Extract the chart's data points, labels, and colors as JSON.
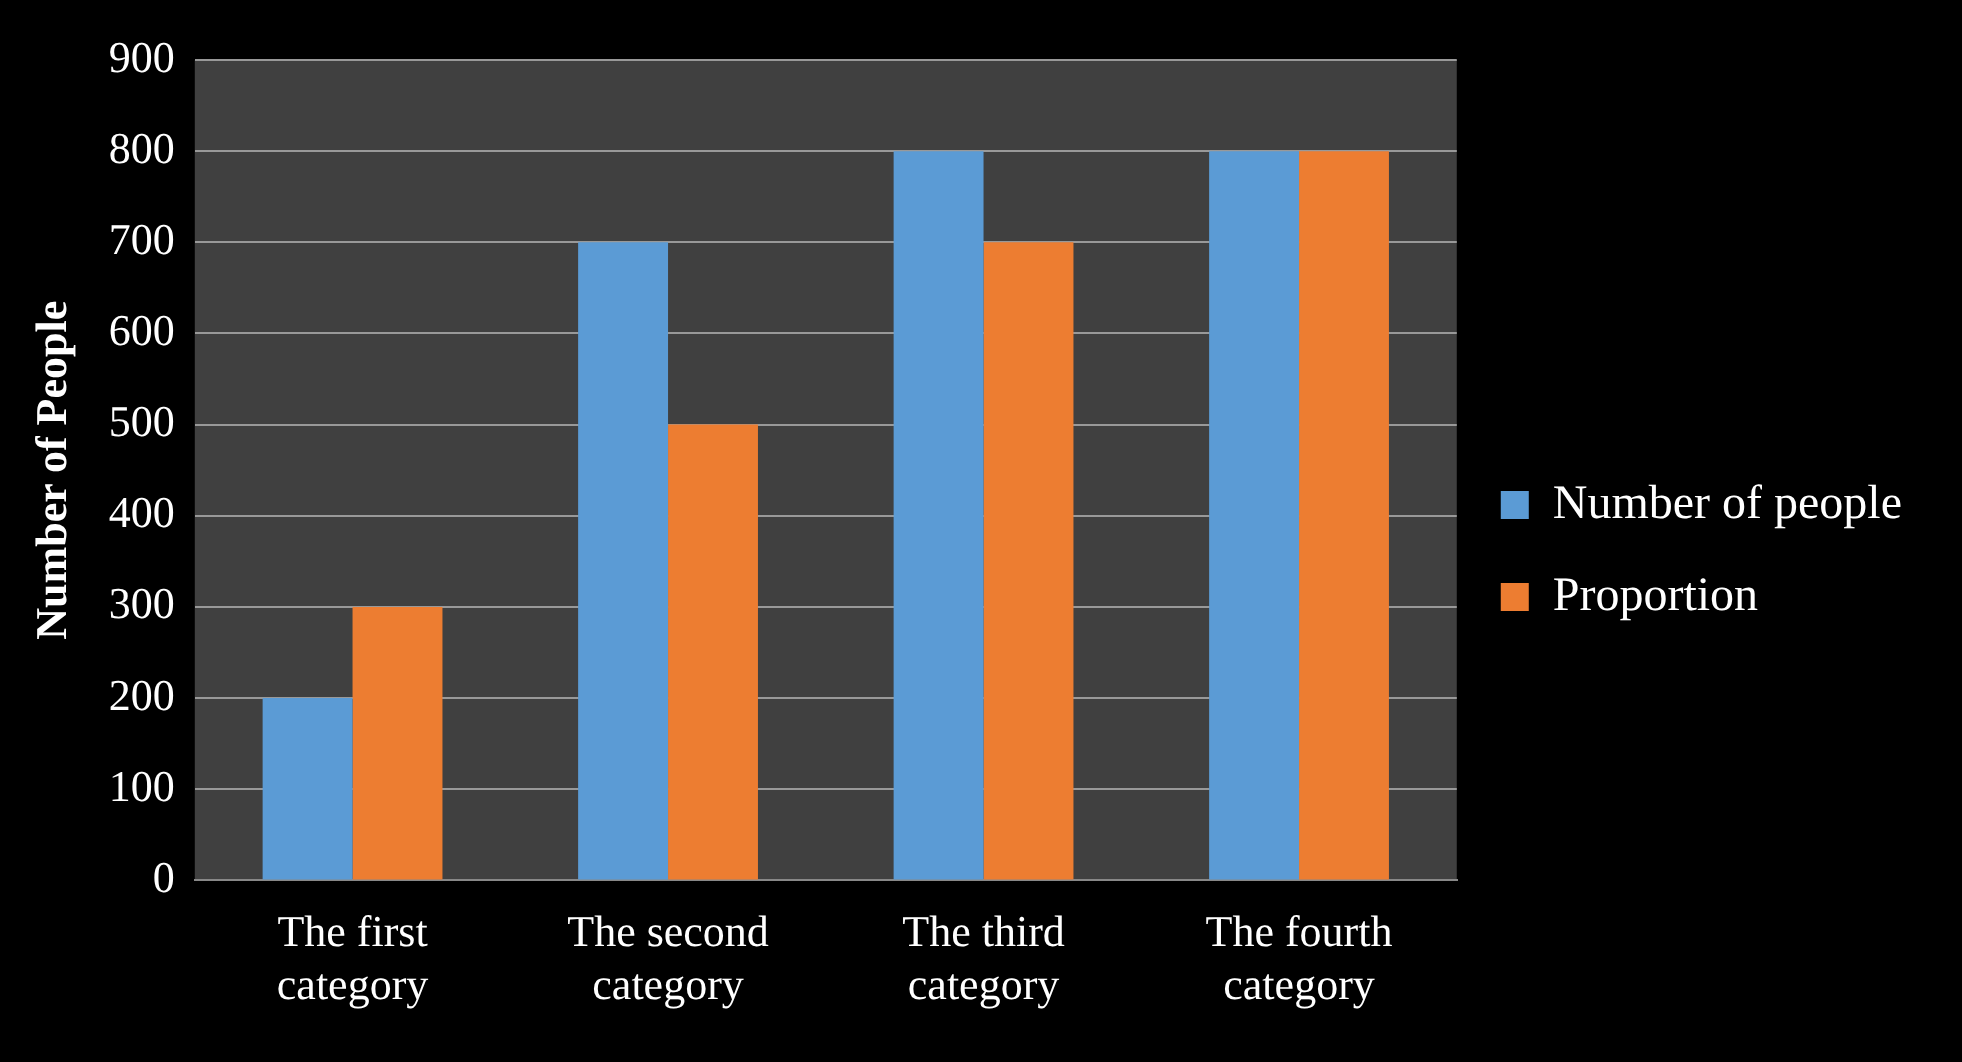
{
  "chart_data": {
    "type": "bar",
    "ylabel": "Number of People",
    "categories": [
      "The first category",
      "The second category",
      "The third category",
      "The fourth category"
    ],
    "series": [
      {
        "name": "Number of people",
        "color": "#5b9bd5",
        "values": [
          200,
          700,
          800,
          800
        ]
      },
      {
        "name": "Proportion",
        "color": "#ed7d31",
        "values": [
          300,
          500,
          700,
          800
        ]
      }
    ],
    "ylim": [
      0,
      900
    ],
    "yticks": [
      0,
      100,
      200,
      300,
      400,
      500,
      600,
      700,
      800,
      900
    ],
    "grid": "y",
    "legend": "right"
  }
}
